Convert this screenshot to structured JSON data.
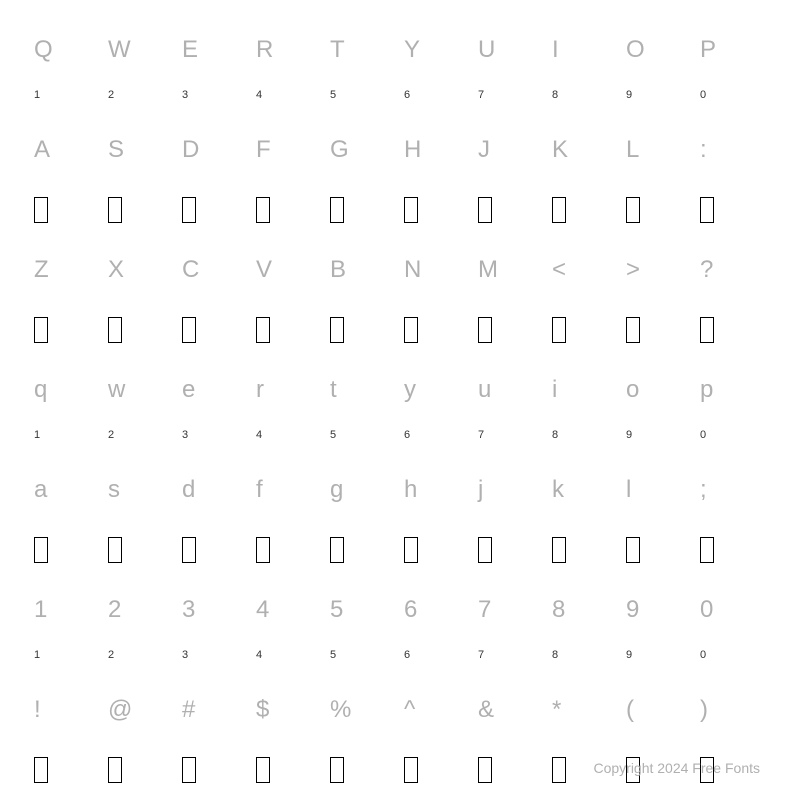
{
  "rows": [
    {
      "type": "glyph",
      "cells": [
        "Q",
        "W",
        "E",
        "R",
        "T",
        "Y",
        "U",
        "I",
        "O",
        "P"
      ]
    },
    {
      "type": "index",
      "cells": [
        "1",
        "2",
        "3",
        "4",
        "5",
        "6",
        "7",
        "8",
        "9",
        "0"
      ]
    },
    {
      "type": "glyph",
      "cells": [
        "A",
        "S",
        "D",
        "F",
        "G",
        "H",
        "J",
        "K",
        "L",
        ":"
      ]
    },
    {
      "type": "missing",
      "count": 10
    },
    {
      "type": "glyph",
      "cells": [
        "Z",
        "X",
        "C",
        "V",
        "B",
        "N",
        "M",
        "<",
        ">",
        "?"
      ]
    },
    {
      "type": "missing",
      "count": 10
    },
    {
      "type": "glyph",
      "cells": [
        "q",
        "w",
        "e",
        "r",
        "t",
        "y",
        "u",
        "i",
        "o",
        "p"
      ]
    },
    {
      "type": "index",
      "cells": [
        "1",
        "2",
        "3",
        "4",
        "5",
        "6",
        "7",
        "8",
        "9",
        "0"
      ]
    },
    {
      "type": "glyph",
      "cells": [
        "a",
        "s",
        "d",
        "f",
        "g",
        "h",
        "j",
        "k",
        "l",
        ";"
      ]
    },
    {
      "type": "missing",
      "count": 10
    },
    {
      "type": "glyph",
      "cells": [
        "1",
        "2",
        "3",
        "4",
        "5",
        "6",
        "7",
        "8",
        "9",
        "0"
      ]
    },
    {
      "type": "index",
      "cells": [
        "1",
        "2",
        "3",
        "4",
        "5",
        "6",
        "7",
        "8",
        "9",
        "0"
      ]
    },
    {
      "type": "glyph",
      "cells": [
        "!",
        "@",
        "#",
        "$",
        "%",
        "^",
        "&",
        "*",
        "(",
        ")"
      ]
    },
    {
      "type": "missing",
      "count": 10
    }
  ],
  "copyright": "Copyright 2024 Free Fonts",
  "style": {
    "background_color": "#ffffff",
    "glyph_color": "#b0b0b0",
    "glyph_fontsize": 24,
    "index_color": "#333333",
    "index_fontsize": 11,
    "missing_border_color": "#000000",
    "missing_width": 14,
    "missing_height": 26,
    "columns": 10
  }
}
